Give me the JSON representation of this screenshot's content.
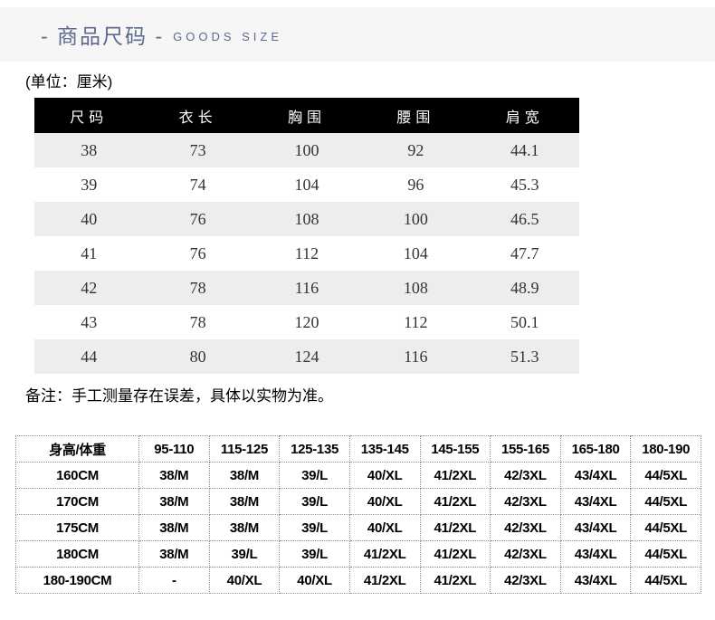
{
  "header": {
    "title_cn": "- 商品尺码 -",
    "title_en": "GOODS SIZE",
    "accent_color": "#5a698d",
    "banner_bg": "#f6f6f7"
  },
  "unit_note": "(单位：厘米)",
  "size_table": {
    "columns": [
      "尺码",
      "衣长",
      "胸围",
      "腰围",
      "肩宽"
    ],
    "rows": [
      [
        "38",
        "73",
        "100",
        "92",
        "44.1"
      ],
      [
        "39",
        "74",
        "104",
        "96",
        "45.3"
      ],
      [
        "40",
        "76",
        "108",
        "100",
        "46.5"
      ],
      [
        "41",
        "76",
        "112",
        "104",
        "47.7"
      ],
      [
        "42",
        "78",
        "116",
        "108",
        "48.9"
      ],
      [
        "43",
        "78",
        "120",
        "112",
        "50.1"
      ],
      [
        "44",
        "80",
        "124",
        "116",
        "51.3"
      ]
    ],
    "header_bg": "#000000",
    "zebra_row_bg": "#ededed"
  },
  "remark": "备注：手工测量存在误差，具体以实物为准。",
  "fit_table": {
    "columns": [
      "身高/体重",
      "95-110",
      "115-125",
      "125-135",
      "135-145",
      "145-155",
      "155-165",
      "165-180",
      "180-190"
    ],
    "rows": [
      [
        "160CM",
        "38/M",
        "38/M",
        "39/L",
        "40/XL",
        "41/2XL",
        "42/3XL",
        "43/4XL",
        "44/5XL"
      ],
      [
        "170CM",
        "38/M",
        "38/M",
        "39/L",
        "40/XL",
        "41/2XL",
        "42/3XL",
        "43/4XL",
        "44/5XL"
      ],
      [
        "175CM",
        "38/M",
        "38/M",
        "39/L",
        "40/XL",
        "41/2XL",
        "42/3XL",
        "43/4XL",
        "44/5XL"
      ],
      [
        "180CM",
        "38/M",
        "39/L",
        "39/L",
        "41/2XL",
        "41/2XL",
        "42/3XL",
        "43/4XL",
        "44/5XL"
      ],
      [
        "180-190CM",
        "-",
        "40/XL",
        "40/XL",
        "41/2XL",
        "41/2XL",
        "42/3XL",
        "43/4XL",
        "44/5XL"
      ]
    ],
    "border_color": "#8f8f8f"
  }
}
